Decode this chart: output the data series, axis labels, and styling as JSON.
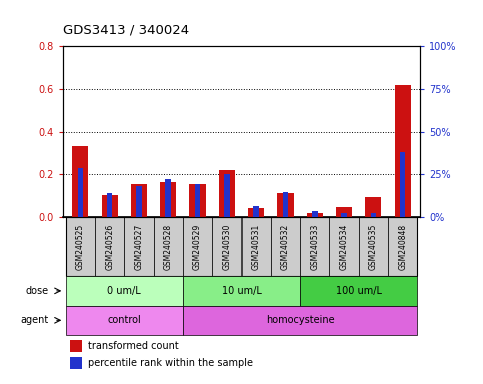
{
  "title": "GDS3413 / 340024",
  "samples": [
    "GSM240525",
    "GSM240526",
    "GSM240527",
    "GSM240528",
    "GSM240529",
    "GSM240530",
    "GSM240531",
    "GSM240532",
    "GSM240533",
    "GSM240534",
    "GSM240535",
    "GSM240848"
  ],
  "transformed_count": [
    0.335,
    0.105,
    0.155,
    0.165,
    0.155,
    0.22,
    0.045,
    0.115,
    0.02,
    0.05,
    0.095,
    0.62
  ],
  "percentile_rank_pct": [
    29.0,
    14.0,
    18.5,
    22.5,
    19.5,
    25.0,
    6.5,
    14.5,
    3.5,
    2.5,
    2.5,
    38.0
  ],
  "red_color": "#cc1111",
  "blue_color": "#2233cc",
  "ylim_left": [
    0,
    0.8
  ],
  "ylim_right": [
    0,
    100
  ],
  "yticks_left": [
    0.0,
    0.2,
    0.4,
    0.6,
    0.8
  ],
  "yticks_right": [
    0,
    25,
    50,
    75,
    100
  ],
  "ytick_labels_right": [
    "0%",
    "25%",
    "50%",
    "75%",
    "100%"
  ],
  "dose_groups": [
    {
      "label": "0 um/L",
      "start": 0,
      "end": 4,
      "color": "#bbffbb"
    },
    {
      "label": "10 um/L",
      "start": 4,
      "end": 8,
      "color": "#88ee88"
    },
    {
      "label": "100 um/L",
      "start": 8,
      "end": 12,
      "color": "#44cc44"
    }
  ],
  "agent_groups": [
    {
      "label": "control",
      "start": 0,
      "end": 4,
      "color": "#ee88ee"
    },
    {
      "label": "homocysteine",
      "start": 4,
      "end": 12,
      "color": "#dd66dd"
    }
  ],
  "dose_label": "dose",
  "agent_label": "agent",
  "legend_red": "transformed count",
  "legend_blue": "percentile rank within the sample",
  "sample_bg": "#cccccc",
  "bar_width": 0.55
}
